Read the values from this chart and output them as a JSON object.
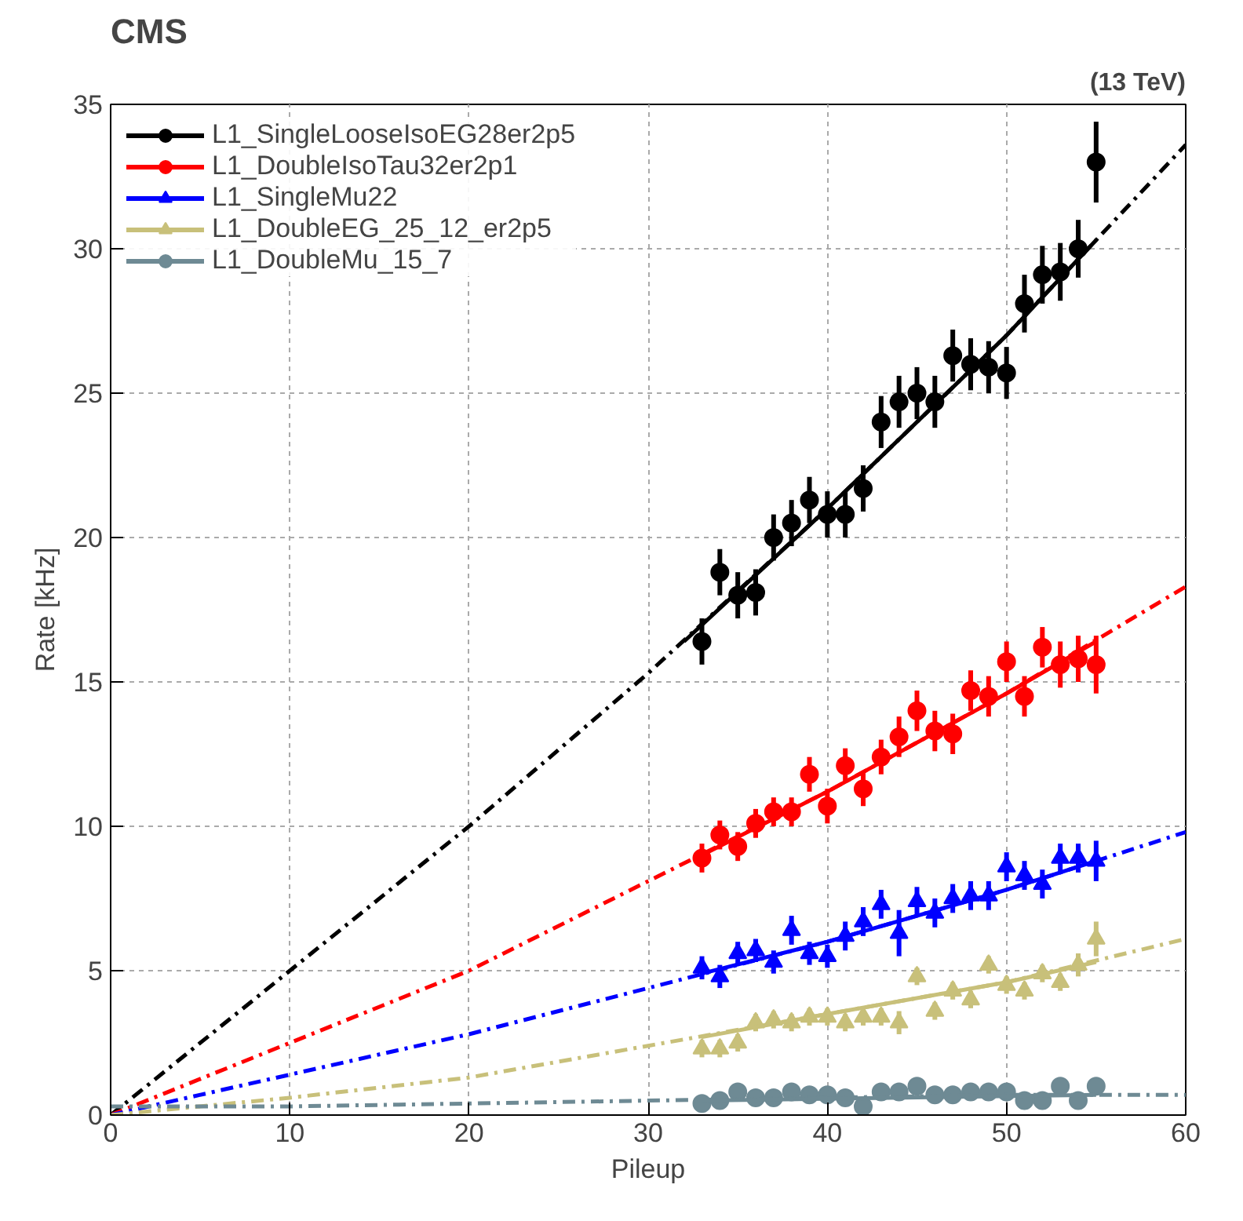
{
  "chart_data": {
    "type": "scatter",
    "title": "CMS",
    "annotations": [
      "(13 TeV)"
    ],
    "xlabel": "Pileup",
    "ylabel": "Rate [kHz]",
    "xlim": [
      0,
      60
    ],
    "xticks": [
      0,
      10,
      20,
      30,
      40,
      50,
      60
    ],
    "ylim": [
      0,
      35
    ],
    "yticks": [
      0,
      5,
      10,
      15,
      20,
      25,
      30,
      35
    ],
    "grid": true,
    "legend": "top left",
    "series": [
      {
        "name": "L1_SingleLooseIsoEG28er2p5",
        "color": "#000000",
        "marker": "circle",
        "x": [
          33,
          34,
          35,
          36,
          37,
          38,
          39,
          40,
          41,
          42,
          43,
          44,
          45,
          46,
          47,
          48,
          49,
          50,
          51,
          52,
          53,
          54,
          55
        ],
        "values": [
          16.4,
          18.8,
          18.0,
          18.1,
          20.0,
          20.5,
          21.3,
          20.8,
          20.8,
          21.7,
          24.0,
          24.7,
          25.0,
          24.7,
          26.3,
          26.0,
          25.9,
          25.7,
          28.1,
          29.1,
          29.2,
          30.0,
          33.0
        ],
        "errors": [
          0.8,
          0.8,
          0.8,
          0.8,
          0.8,
          0.8,
          0.8,
          0.8,
          0.8,
          0.8,
          0.9,
          0.9,
          0.9,
          0.9,
          0.9,
          0.9,
          0.9,
          0.9,
          1.0,
          1.0,
          1.0,
          1.0,
          1.4
        ]
      },
      {
        "name": "L1_DoubleIsoTau32er2p1",
        "color": "#ff0000",
        "marker": "circle",
        "x": [
          33,
          34,
          35,
          36,
          37,
          38,
          39,
          40,
          41,
          42,
          43,
          44,
          45,
          46,
          47,
          48,
          49,
          50,
          51,
          52,
          53,
          54,
          55
        ],
        "values": [
          8.9,
          9.7,
          9.3,
          10.1,
          10.5,
          10.5,
          11.8,
          10.7,
          12.1,
          11.3,
          12.4,
          13.1,
          14.0,
          13.3,
          13.2,
          14.7,
          14.5,
          15.7,
          14.5,
          16.2,
          15.6,
          15.8,
          15.6
        ],
        "errors": [
          0.5,
          0.5,
          0.5,
          0.5,
          0.5,
          0.5,
          0.6,
          0.6,
          0.6,
          0.6,
          0.6,
          0.7,
          0.7,
          0.7,
          0.7,
          0.7,
          0.7,
          0.7,
          0.7,
          0.7,
          0.8,
          0.8,
          1.0
        ]
      },
      {
        "name": "L1_SingleMu22",
        "color": "#0000ff",
        "marker": "triangle",
        "x": [
          33,
          34,
          35,
          36,
          37,
          38,
          39,
          40,
          41,
          42,
          43,
          44,
          45,
          46,
          47,
          48,
          49,
          50,
          51,
          52,
          53,
          54,
          55
        ],
        "values": [
          5.1,
          4.8,
          5.6,
          5.7,
          5.3,
          6.4,
          5.6,
          5.5,
          6.2,
          6.7,
          7.3,
          6.3,
          7.4,
          7.0,
          7.5,
          7.6,
          7.6,
          8.6,
          8.3,
          8.0,
          8.9,
          8.9,
          8.8
        ],
        "errors": [
          0.4,
          0.4,
          0.4,
          0.4,
          0.4,
          0.5,
          0.4,
          0.4,
          0.5,
          0.5,
          0.5,
          0.8,
          0.5,
          0.5,
          0.5,
          0.5,
          0.5,
          0.5,
          0.5,
          0.5,
          0.5,
          0.5,
          0.7
        ]
      },
      {
        "name": "L1_DoubleEG_25_12_er2p5",
        "color": "#c8c07a",
        "marker": "triangle",
        "x": [
          33,
          34,
          35,
          36,
          37,
          38,
          39,
          40,
          41,
          42,
          43,
          44,
          45,
          46,
          47,
          48,
          49,
          50,
          51,
          52,
          53,
          54,
          55
        ],
        "values": [
          2.3,
          2.3,
          2.5,
          3.2,
          3.3,
          3.2,
          3.4,
          3.4,
          3.2,
          3.4,
          3.4,
          3.2,
          4.8,
          3.6,
          4.3,
          4.0,
          5.2,
          4.5,
          4.3,
          4.9,
          4.6,
          5.2,
          6.1
        ],
        "errors": [
          0.3,
          0.3,
          0.3,
          0.3,
          0.3,
          0.3,
          0.3,
          0.3,
          0.3,
          0.3,
          0.3,
          0.4,
          0.3,
          0.3,
          0.3,
          0.3,
          0.3,
          0.3,
          0.3,
          0.3,
          0.3,
          0.4,
          0.6
        ]
      },
      {
        "name": "L1_DoubleMu_15_7",
        "color": "#6e8a94",
        "marker": "circle",
        "x": [
          33,
          34,
          35,
          36,
          37,
          38,
          39,
          40,
          41,
          42,
          43,
          44,
          45,
          46,
          47,
          48,
          49,
          50,
          51,
          52,
          53,
          54,
          55
        ],
        "values": [
          0.4,
          0.5,
          0.8,
          0.6,
          0.6,
          0.8,
          0.7,
          0.7,
          0.6,
          0.3,
          0.8,
          0.8,
          1.0,
          0.7,
          0.7,
          0.8,
          0.8,
          0.8,
          0.5,
          0.5,
          1.0,
          0.5,
          1.0
        ],
        "errors": [
          0.2,
          0.2,
          0.2,
          0.2,
          0.2,
          0.2,
          0.2,
          0.2,
          0.2,
          0.2,
          0.2,
          0.2,
          0.2,
          0.2,
          0.2,
          0.2,
          0.2,
          0.2,
          0.2,
          0.2,
          0.2,
          0.2,
          0.2
        ]
      },
      {
        "type": "line",
        "color": "#000000",
        "line_style": "dashed",
        "x": [
          0,
          10,
          20,
          30,
          40,
          50,
          60
        ],
        "values": [
          0,
          5,
          10,
          15.3,
          21.0,
          27.0,
          33.6
        ]
      },
      {
        "type": "line",
        "color": "#000000",
        "line_style": "solid",
        "x": [
          32,
          40,
          50,
          55
        ],
        "values": [
          16.4,
          21.0,
          27.0,
          30.3
        ]
      },
      {
        "type": "line",
        "color": "#ff0000",
        "line_style": "dashed",
        "x": [
          0,
          10,
          20,
          30,
          40,
          50,
          60
        ],
        "values": [
          0,
          2.5,
          5.0,
          8.1,
          11.2,
          14.6,
          18.3
        ]
      },
      {
        "type": "line",
        "color": "#ff0000",
        "line_style": "solid",
        "x": [
          33,
          40,
          50,
          55
        ],
        "values": [
          9.0,
          11.2,
          14.6,
          16.4
        ]
      },
      {
        "type": "line",
        "color": "#0000ff",
        "line_style": "dashed",
        "x": [
          0,
          10,
          20,
          30,
          40,
          50,
          60
        ],
        "values": [
          0,
          1.4,
          2.8,
          4.4,
          6.0,
          7.8,
          9.8
        ]
      },
      {
        "type": "line",
        "color": "#0000ff",
        "line_style": "solid",
        "x": [
          33,
          40,
          50,
          55
        ],
        "values": [
          4.9,
          6.0,
          7.8,
          8.8
        ]
      },
      {
        "type": "line",
        "color": "#c8c07a",
        "line_style": "dashed",
        "x": [
          0,
          10,
          20,
          30,
          40,
          50,
          60
        ],
        "values": [
          0,
          0.6,
          1.3,
          2.4,
          3.5,
          4.6,
          6.1
        ]
      },
      {
        "type": "line",
        "color": "#c8c07a",
        "line_style": "solid",
        "x": [
          33,
          40,
          50,
          55
        ],
        "values": [
          2.7,
          3.5,
          4.6,
          5.3
        ]
      },
      {
        "type": "line",
        "color": "#6e8a94",
        "line_style": "dashed",
        "x": [
          0,
          10,
          20,
          30,
          40,
          50,
          60
        ],
        "values": [
          0.3,
          0.3,
          0.4,
          0.5,
          0.6,
          0.7,
          0.7
        ]
      },
      {
        "type": "line",
        "color": "#6e8a94",
        "line_style": "solid",
        "x": [
          33,
          55
        ],
        "values": [
          0.5,
          0.7
        ]
      }
    ]
  }
}
